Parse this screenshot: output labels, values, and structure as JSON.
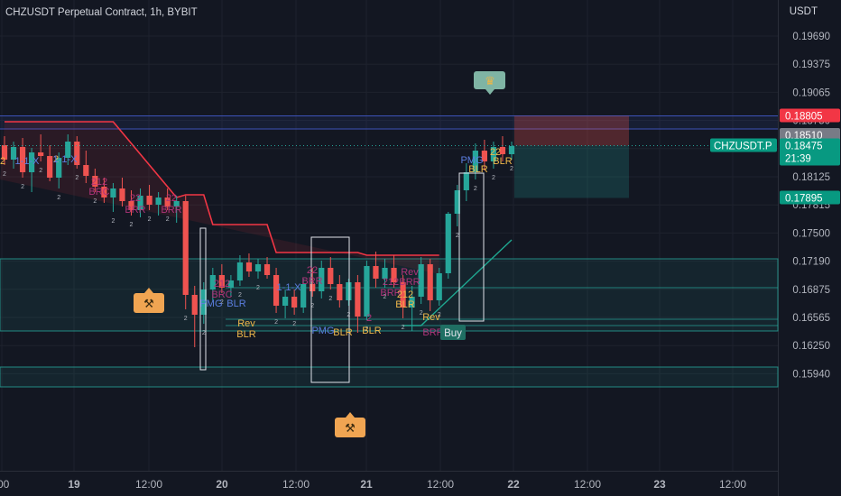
{
  "header": {
    "title": "CHZUSDT Perpetual Contract, 1h, BYBIT",
    "currency": "USDT"
  },
  "colors": {
    "background": "#131722",
    "up": "#26a69a",
    "down": "#ef5350",
    "red_line": "#f23645",
    "teal_line": "#1fa891",
    "blue_line": "#3d52b8",
    "zone": "#26a69a"
  },
  "chart_data": {
    "type": "candlestick",
    "y_ticks": [
      "0.19690",
      "0.19375",
      "0.19065",
      "0.18750",
      "0.18435",
      "0.18125",
      "0.17815",
      "0.17500",
      "0.17190",
      "0.16875",
      "0.16565",
      "0.16250",
      "0.15940"
    ],
    "x_ticks": [
      ":00",
      "19",
      "12:00",
      "20",
      "12:00",
      "21",
      "12:00",
      "22",
      "12:00",
      "23",
      "12:00"
    ],
    "price_labels": [
      {
        "text": "0.18805",
        "role": "resistance",
        "price": 0.18805
      },
      {
        "text": "0.18510",
        "role": "level",
        "price": 0.1851
      },
      {
        "text": "CHZUSDT.P",
        "role": "symbol"
      },
      {
        "text": "0.18475",
        "role": "last",
        "price": 0.18475
      },
      {
        "text": "21:39",
        "role": "countdown"
      },
      {
        "text": "0.17895",
        "role": "stop",
        "price": 0.17895
      }
    ],
    "blue_levels": [
      0.18805,
      0.1866
    ],
    "zones": [
      {
        "top": 0.1722,
        "bottom": 0.1642
      },
      {
        "top": 0.1602,
        "bottom": 0.158
      }
    ],
    "signal_label": "Buy",
    "pattern_labels": [
      "2",
      "1-1-X",
      "2",
      "1-1-X",
      "212",
      "BRC",
      "22",
      "BRR",
      "22",
      "BRR",
      "212",
      "BRC",
      "PMG",
      "BLR",
      "Rev",
      "BLR",
      "1-1-X",
      "22",
      "BRR",
      "PMG",
      "BLR",
      "212",
      "BRR",
      "Rev",
      "BRR",
      "212",
      "BLR",
      "2",
      "BLR",
      "Rev",
      "BRR",
      "PMG",
      "22",
      "BLR",
      "BLR"
    ],
    "candles": [
      {
        "o": 0.1848,
        "h": 0.1858,
        "l": 0.1826,
        "c": 0.1832
      },
      {
        "o": 0.1832,
        "h": 0.1852,
        "l": 0.1822,
        "c": 0.1846
      },
      {
        "o": 0.1846,
        "h": 0.1856,
        "l": 0.1812,
        "c": 0.1818
      },
      {
        "o": 0.1818,
        "h": 0.1845,
        "l": 0.1796,
        "c": 0.184
      },
      {
        "o": 0.184,
        "h": 0.186,
        "l": 0.183,
        "c": 0.1836
      },
      {
        "o": 0.1836,
        "h": 0.1848,
        "l": 0.1808,
        "c": 0.1812
      },
      {
        "o": 0.1812,
        "h": 0.184,
        "l": 0.18,
        "c": 0.1834
      },
      {
        "o": 0.1834,
        "h": 0.186,
        "l": 0.1826,
        "c": 0.1852
      },
      {
        "o": 0.1852,
        "h": 0.1858,
        "l": 0.1822,
        "c": 0.1826
      },
      {
        "o": 0.1826,
        "h": 0.1842,
        "l": 0.1806,
        "c": 0.1814
      },
      {
        "o": 0.1814,
        "h": 0.1822,
        "l": 0.1796,
        "c": 0.1802
      },
      {
        "o": 0.1802,
        "h": 0.1812,
        "l": 0.1784,
        "c": 0.179
      },
      {
        "o": 0.179,
        "h": 0.1806,
        "l": 0.1774,
        "c": 0.18
      },
      {
        "o": 0.18,
        "h": 0.1812,
        "l": 0.178,
        "c": 0.1786
      },
      {
        "o": 0.1786,
        "h": 0.1798,
        "l": 0.177,
        "c": 0.1776
      },
      {
        "o": 0.1776,
        "h": 0.18,
        "l": 0.1768,
        "c": 0.1792
      },
      {
        "o": 0.1792,
        "h": 0.1804,
        "l": 0.1776,
        "c": 0.1782
      },
      {
        "o": 0.1782,
        "h": 0.1796,
        "l": 0.177,
        "c": 0.179
      },
      {
        "o": 0.179,
        "h": 0.18,
        "l": 0.1776,
        "c": 0.178
      },
      {
        "o": 0.178,
        "h": 0.1792,
        "l": 0.1762,
        "c": 0.1786
      },
      {
        "o": 0.1786,
        "h": 0.1792,
        "l": 0.1666,
        "c": 0.1682
      },
      {
        "o": 0.1682,
        "h": 0.1692,
        "l": 0.1624,
        "c": 0.166
      },
      {
        "o": 0.166,
        "h": 0.1696,
        "l": 0.165,
        "c": 0.1688
      },
      {
        "o": 0.1688,
        "h": 0.1712,
        "l": 0.1676,
        "c": 0.1704
      },
      {
        "o": 0.1704,
        "h": 0.1716,
        "l": 0.1684,
        "c": 0.169
      },
      {
        "o": 0.169,
        "h": 0.1704,
        "l": 0.168,
        "c": 0.1698
      },
      {
        "o": 0.1698,
        "h": 0.1726,
        "l": 0.1692,
        "c": 0.1718
      },
      {
        "o": 0.1718,
        "h": 0.1728,
        "l": 0.1702,
        "c": 0.1708
      },
      {
        "o": 0.1708,
        "h": 0.1722,
        "l": 0.17,
        "c": 0.1716
      },
      {
        "o": 0.1716,
        "h": 0.1724,
        "l": 0.17,
        "c": 0.1704
      },
      {
        "o": 0.1704,
        "h": 0.1712,
        "l": 0.1662,
        "c": 0.167
      },
      {
        "o": 0.167,
        "h": 0.1688,
        "l": 0.1656,
        "c": 0.168
      },
      {
        "o": 0.168,
        "h": 0.1688,
        "l": 0.166,
        "c": 0.1668
      },
      {
        "o": 0.1668,
        "h": 0.17,
        "l": 0.1662,
        "c": 0.1694
      },
      {
        "o": 0.1694,
        "h": 0.1712,
        "l": 0.168,
        "c": 0.1686
      },
      {
        "o": 0.1686,
        "h": 0.172,
        "l": 0.1678,
        "c": 0.1712
      },
      {
        "o": 0.1712,
        "h": 0.1724,
        "l": 0.1688,
        "c": 0.1694
      },
      {
        "o": 0.1694,
        "h": 0.1704,
        "l": 0.1668,
        "c": 0.1676
      },
      {
        "o": 0.1676,
        "h": 0.17,
        "l": 0.167,
        "c": 0.1696
      },
      {
        "o": 0.1696,
        "h": 0.1704,
        "l": 0.164,
        "c": 0.1658
      },
      {
        "o": 0.1658,
        "h": 0.172,
        "l": 0.1654,
        "c": 0.1714
      },
      {
        "o": 0.1714,
        "h": 0.173,
        "l": 0.169,
        "c": 0.17
      },
      {
        "o": 0.17,
        "h": 0.1722,
        "l": 0.169,
        "c": 0.1712
      },
      {
        "o": 0.1712,
        "h": 0.1726,
        "l": 0.169,
        "c": 0.1696
      },
      {
        "o": 0.1696,
        "h": 0.1704,
        "l": 0.1656,
        "c": 0.1668
      },
      {
        "o": 0.1668,
        "h": 0.1692,
        "l": 0.1642,
        "c": 0.168
      },
      {
        "o": 0.168,
        "h": 0.1724,
        "l": 0.1672,
        "c": 0.1716
      },
      {
        "o": 0.1716,
        "h": 0.1722,
        "l": 0.1664,
        "c": 0.1676
      },
      {
        "o": 0.1676,
        "h": 0.1712,
        "l": 0.167,
        "c": 0.1706
      },
      {
        "o": 0.1706,
        "h": 0.1774,
        "l": 0.17,
        "c": 0.1772
      },
      {
        "o": 0.1772,
        "h": 0.1804,
        "l": 0.1758,
        "c": 0.1798
      },
      {
        "o": 0.1798,
        "h": 0.1828,
        "l": 0.1786,
        "c": 0.1818
      },
      {
        "o": 0.1818,
        "h": 0.185,
        "l": 0.181,
        "c": 0.1842
      },
      {
        "o": 0.1842,
        "h": 0.1854,
        "l": 0.182,
        "c": 0.183
      },
      {
        "o": 0.183,
        "h": 0.1852,
        "l": 0.1822,
        "c": 0.1846
      },
      {
        "o": 0.1846,
        "h": 0.1858,
        "l": 0.183,
        "c": 0.1838
      },
      {
        "o": 0.1838,
        "h": 0.1852,
        "l": 0.1832,
        "c": 0.1847
      }
    ]
  }
}
